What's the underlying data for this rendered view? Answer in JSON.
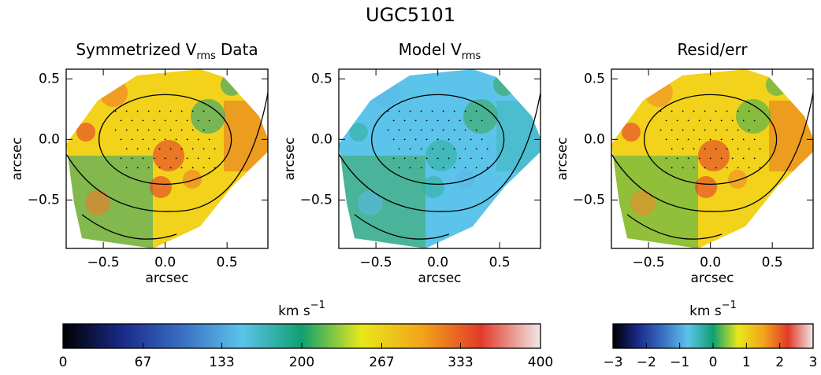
{
  "title": "UGC5101",
  "chart_data": [
    {
      "type": "map",
      "title": [
        "Symmetrized V",
        "rms",
        "Data"
      ],
      "xlabel": "arcsec",
      "ylabel": "arcsec",
      "xlim": [
        -0.8,
        0.83
      ],
      "ylim": [
        -0.9,
        0.58
      ],
      "xticks": [
        {
          "value": -0.5,
          "label": "−0.5"
        },
        {
          "value": 0,
          "label": "0.0"
        },
        0.5
      ],
      "yticks": [
        {
          "value": -0.5,
          "label": "−0.5"
        },
        {
          "value": 0,
          "label": "0.0"
        },
        0.5
      ],
      "colors": [
        "#f2d21a",
        "#f07a2a",
        "#e23a2a",
        "#27a37a"
      ]
    },
    {
      "type": "map",
      "title": [
        "Model V",
        "rms"
      ],
      "xlim": [
        -0.8,
        0.83
      ],
      "ylim": [
        -0.9,
        0.58
      ],
      "xticks": [
        {
          "value": -0.5,
          "label": "−0.5"
        },
        {
          "value": 0,
          "label": "0.0"
        },
        0.5
      ],
      "yticks": [
        {
          "value": -0.5,
          "label": "−0.5"
        },
        {
          "value": 0,
          "label": "0.0"
        },
        0.5
      ],
      "xlabel": "arcsec",
      "ylabel": "arcsec",
      "colors": [
        "#5cc3ea",
        "#58b9e4",
        "#2fb39a",
        "#3aa856"
      ]
    },
    {
      "type": "map",
      "title": [
        "Resid/err"
      ],
      "xlabel": "arcsec",
      "ylabel": "arcsec",
      "xlim": [
        -0.8,
        0.83
      ],
      "ylim": [
        -0.9,
        0.58
      ],
      "xticks": [
        {
          "value": -0.5,
          "label": "−0.5"
        },
        {
          "value": 0,
          "label": "0.0"
        },
        0.5
      ],
      "yticks": [
        {
          "value": -0.5,
          "label": "−0.5"
        },
        {
          "value": 0,
          "label": "0.0"
        },
        0.5
      ],
      "colors": [
        "#f2d21a",
        "#f08a2a",
        "#e23a2a",
        "#3fae55"
      ]
    },
    {
      "type": "colorbar",
      "label": [
        "km s",
        "−1"
      ],
      "xlim": [
        0,
        400
      ],
      "xticks": [
        0,
        67,
        133,
        200,
        267,
        333,
        400
      ],
      "colors": [
        "#000000",
        "#1a2a8a",
        "#3a6fc4",
        "#5cc3ea",
        "#10a070",
        "#e8e81a",
        "#f2a51a",
        "#e23a2a",
        "#f0e8e8"
      ]
    },
    {
      "type": "colorbar",
      "label": [
        "km s",
        "−1"
      ],
      "xlim": [
        -3,
        3
      ],
      "xticks": [
        {
          "value": -3,
          "label": "−3"
        },
        {
          "value": -2,
          "label": "−2"
        },
        {
          "value": -1,
          "label": "−1"
        },
        0,
        1,
        2,
        3
      ],
      "colors": [
        "#000000",
        "#1a2a8a",
        "#3a6fc4",
        "#5cc3ea",
        "#10a070",
        "#e8e81a",
        "#f2a51a",
        "#e23a2a",
        "#f0e8e8"
      ]
    }
  ]
}
